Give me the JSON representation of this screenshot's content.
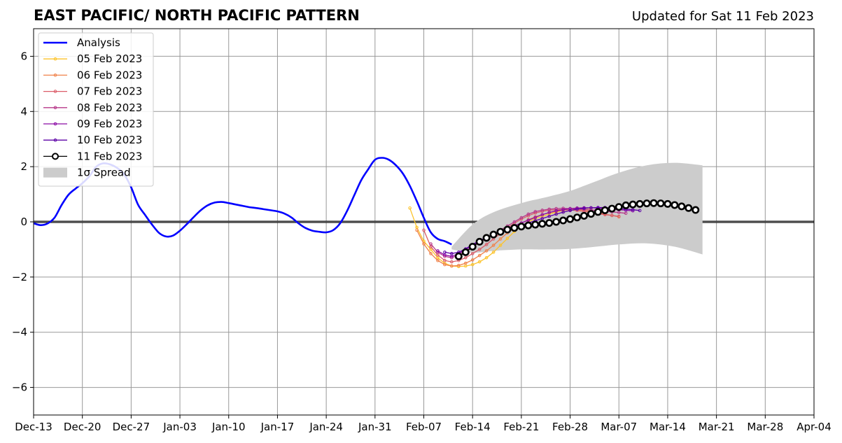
{
  "chart_data": {
    "type": "line",
    "title": "EAST PACIFIC/ NORTH PACIFIC PATTERN",
    "subtitle": "Updated for Sat 11 Feb 2023",
    "xlabel": "",
    "ylabel": "",
    "x_range": [
      "2022-12-13",
      "2023-04-04"
    ],
    "ylim": [
      -7,
      7
    ],
    "y_ticks": [
      -6,
      -4,
      -2,
      0,
      2,
      4,
      6
    ],
    "y_tick_labels": [
      "−6",
      "−4",
      "−2",
      "0",
      "2",
      "4",
      "6"
    ],
    "x_ticks": [
      "2022-12-13",
      "2022-12-20",
      "2022-12-27",
      "2023-01-03",
      "2023-01-10",
      "2023-01-17",
      "2023-01-24",
      "2023-01-31",
      "2023-02-07",
      "2023-02-14",
      "2023-02-21",
      "2023-02-28",
      "2023-03-07",
      "2023-03-14",
      "2023-03-21",
      "2023-03-28",
      "2023-04-04"
    ],
    "x_tick_labels": [
      "Dec-13",
      "Dec-20",
      "Dec-27",
      "Jan-03",
      "Jan-10",
      "Jan-17",
      "Jan-24",
      "Jan-31",
      "Feb-07",
      "Feb-14",
      "Feb-21",
      "Feb-28",
      "Mar-07",
      "Mar-14",
      "Mar-21",
      "Mar-28",
      "Apr-04"
    ],
    "grid": true,
    "zero_line": true,
    "legend_position": "top-left",
    "legend": [
      {
        "label": "Analysis",
        "color": "#0000ff",
        "kind": "line"
      },
      {
        "label": "05 Feb 2023",
        "color": "#fcc32a",
        "kind": "marker-line"
      },
      {
        "label": "06 Feb 2023",
        "color": "#f0824a",
        "kind": "marker-line"
      },
      {
        "label": "07 Feb 2023",
        "color": "#db5c68",
        "kind": "marker-line"
      },
      {
        "label": "08 Feb 2023",
        "color": "#b7388a",
        "kind": "marker-line"
      },
      {
        "label": "09 Feb 2023",
        "color": "#8b0aa5",
        "kind": "marker-line"
      },
      {
        "label": "10 Feb 2023",
        "color": "#5c01a6",
        "kind": "marker-line"
      },
      {
        "label": "11 Feb 2023",
        "color": "#000000",
        "kind": "circle-line"
      },
      {
        "label": "1σ Spread",
        "color": "#cccccc",
        "kind": "patch"
      }
    ],
    "analysis": {
      "name": "Analysis",
      "color": "#0000ff",
      "points": [
        [
          "2022-12-13",
          -0.05
        ],
        [
          "2022-12-14",
          -0.12
        ],
        [
          "2022-12-15",
          -0.06
        ],
        [
          "2022-12-16",
          0.15
        ],
        [
          "2022-12-17",
          0.6
        ],
        [
          "2022-12-18",
          0.98
        ],
        [
          "2022-12-19",
          1.2
        ],
        [
          "2022-12-20",
          1.4
        ],
        [
          "2022-12-21",
          1.65
        ],
        [
          "2022-12-22",
          2.0
        ],
        [
          "2022-12-23",
          2.12
        ],
        [
          "2022-12-24",
          2.08
        ],
        [
          "2022-12-25",
          1.95
        ],
        [
          "2022-12-26",
          1.72
        ],
        [
          "2022-12-27",
          1.25
        ],
        [
          "2022-12-28",
          0.62
        ],
        [
          "2022-12-29",
          0.25
        ],
        [
          "2022-12-30",
          -0.1
        ],
        [
          "2022-12-31",
          -0.4
        ],
        [
          "2023-01-01",
          -0.53
        ],
        [
          "2023-01-02",
          -0.5
        ],
        [
          "2023-01-03",
          -0.32
        ],
        [
          "2023-01-04",
          -0.08
        ],
        [
          "2023-01-05",
          0.18
        ],
        [
          "2023-01-06",
          0.42
        ],
        [
          "2023-01-07",
          0.6
        ],
        [
          "2023-01-08",
          0.7
        ],
        [
          "2023-01-09",
          0.72
        ],
        [
          "2023-01-10",
          0.68
        ],
        [
          "2023-01-11",
          0.63
        ],
        [
          "2023-01-12",
          0.58
        ],
        [
          "2023-01-13",
          0.53
        ],
        [
          "2023-01-14",
          0.5
        ],
        [
          "2023-01-15",
          0.46
        ],
        [
          "2023-01-16",
          0.42
        ],
        [
          "2023-01-17",
          0.38
        ],
        [
          "2023-01-18",
          0.3
        ],
        [
          "2023-01-19",
          0.16
        ],
        [
          "2023-01-20",
          -0.05
        ],
        [
          "2023-01-21",
          -0.22
        ],
        [
          "2023-01-22",
          -0.32
        ],
        [
          "2023-01-23",
          -0.36
        ],
        [
          "2023-01-24",
          -0.38
        ],
        [
          "2023-01-25",
          -0.3
        ],
        [
          "2023-01-26",
          -0.05
        ],
        [
          "2023-01-27",
          0.4
        ],
        [
          "2023-01-28",
          0.95
        ],
        [
          "2023-01-29",
          1.5
        ],
        [
          "2023-01-30",
          1.9
        ],
        [
          "2023-01-31",
          2.25
        ],
        [
          "2023-02-01",
          2.32
        ],
        [
          "2023-02-02",
          2.25
        ],
        [
          "2023-02-03",
          2.05
        ],
        [
          "2023-02-04",
          1.75
        ],
        [
          "2023-02-05",
          1.3
        ],
        [
          "2023-02-06",
          0.75
        ],
        [
          "2023-02-07",
          0.15
        ],
        [
          "2023-02-08",
          -0.38
        ],
        [
          "2023-02-09",
          -0.62
        ],
        [
          "2023-02-10",
          -0.7
        ],
        [
          "2023-02-11",
          -0.82
        ]
      ]
    },
    "series": [
      {
        "name": "05 Feb 2023",
        "color": "#fcc32a",
        "start": "2023-02-05",
        "values": [
          0.5,
          -0.2,
          -0.7,
          -1.0,
          -1.3,
          -1.5,
          -1.6,
          -1.62,
          -1.6,
          -1.55,
          -1.45,
          -1.3,
          -1.1,
          -0.85,
          -0.6,
          -0.35,
          -0.15,
          0.0,
          0.12,
          0.2,
          0.28,
          0.35,
          0.42,
          0.48,
          0.5,
          0.5,
          0.48
        ]
      },
      {
        "name": "06 Feb 2023",
        "color": "#f0824a",
        "start": "2023-02-06",
        "values": [
          -0.3,
          -0.8,
          -1.15,
          -1.4,
          -1.55,
          -1.6,
          -1.58,
          -1.5,
          -1.38,
          -1.22,
          -1.05,
          -0.85,
          -0.62,
          -0.4,
          -0.2,
          -0.05,
          0.08,
          0.18,
          0.26,
          0.33,
          0.38,
          0.42,
          0.44,
          0.45,
          0.42,
          0.38,
          0.33,
          0.28,
          0.23,
          0.18
        ]
      },
      {
        "name": "07 Feb 2023",
        "color": "#db5c68",
        "start": "2023-02-07",
        "values": [
          -0.3,
          -0.9,
          -1.2,
          -1.4,
          -1.45,
          -1.4,
          -1.3,
          -1.15,
          -1.0,
          -0.82,
          -0.62,
          -0.42,
          -0.22,
          -0.05,
          0.1,
          0.22,
          0.32,
          0.38,
          0.42,
          0.44,
          0.44,
          0.43,
          0.41,
          0.38,
          0.34,
          0.3,
          0.26,
          0.23,
          0.2
        ]
      },
      {
        "name": "08 Feb 2023",
        "color": "#b7388a",
        "start": "2023-02-08",
        "values": [
          -0.8,
          -1.1,
          -1.25,
          -1.3,
          -1.2,
          -1.05,
          -0.9,
          -0.75,
          -0.6,
          -0.45,
          -0.3,
          -0.15,
          0.0,
          0.15,
          0.28,
          0.37,
          0.42,
          0.46,
          0.48,
          0.49,
          0.48,
          0.47,
          0.45,
          0.43,
          0.41,
          0.38,
          0.36,
          0.34,
          0.31
        ]
      },
      {
        "name": "09 Feb 2023",
        "color": "#8b0aa5",
        "start": "2023-02-09",
        "values": [
          -1.05,
          -1.2,
          -1.25,
          -1.15,
          -1.0,
          -0.85,
          -0.7,
          -0.58,
          -0.46,
          -0.35,
          -0.24,
          -0.14,
          -0.04,
          0.06,
          0.16,
          0.26,
          0.34,
          0.4,
          0.44,
          0.48,
          0.5,
          0.51,
          0.51,
          0.5,
          0.48,
          0.46,
          0.44,
          0.42,
          0.4
        ]
      },
      {
        "name": "10 Feb 2023",
        "color": "#5c01a6",
        "start": "2023-02-10",
        "values": [
          -1.1,
          -1.15,
          -1.1,
          -0.98,
          -0.82,
          -0.68,
          -0.56,
          -0.46,
          -0.37,
          -0.28,
          -0.2,
          -0.12,
          -0.04,
          0.04,
          0.12,
          0.2,
          0.28,
          0.35,
          0.41,
          0.46,
          0.49,
          0.51,
          0.52,
          0.52,
          0.5,
          0.48,
          0.46,
          0.44,
          0.41
        ]
      },
      {
        "name": "11 Feb 2023",
        "color": "#000000",
        "start": "2023-02-12",
        "values": [
          -1.25,
          -1.1,
          -0.9,
          -0.72,
          -0.58,
          -0.46,
          -0.36,
          -0.28,
          -0.22,
          -0.17,
          -0.13,
          -0.1,
          -0.07,
          -0.04,
          0.0,
          0.05,
          0.1,
          0.16,
          0.22,
          0.29,
          0.36,
          0.42,
          0.48,
          0.54,
          0.6,
          0.63,
          0.65,
          0.67,
          0.68,
          0.67,
          0.65,
          0.61,
          0.56,
          0.5,
          0.43
        ]
      }
    ],
    "spread": {
      "name": "1σ Spread",
      "color": "#cccccc",
      "upper": [
        [
          "2023-02-11",
          -0.9
        ],
        [
          "2023-02-14",
          -0.1
        ],
        [
          "2023-02-17",
          0.35
        ],
        [
          "2023-02-21",
          0.68
        ],
        [
          "2023-02-25",
          0.92
        ],
        [
          "2023-02-28",
          1.12
        ],
        [
          "2023-03-03",
          1.4
        ],
        [
          "2023-03-07",
          1.78
        ],
        [
          "2023-03-11",
          2.05
        ],
        [
          "2023-03-15",
          2.14
        ],
        [
          "2023-03-19",
          2.05
        ]
      ],
      "lower": [
        [
          "2023-02-11",
          -1.0
        ],
        [
          "2023-02-14",
          -1.12
        ],
        [
          "2023-02-17",
          -1.05
        ],
        [
          "2023-02-21",
          -1.0
        ],
        [
          "2023-02-25",
          -1.0
        ],
        [
          "2023-02-28",
          -0.98
        ],
        [
          "2023-03-03",
          -0.92
        ],
        [
          "2023-03-07",
          -0.82
        ],
        [
          "2023-03-11",
          -0.78
        ],
        [
          "2023-03-15",
          -0.9
        ],
        [
          "2023-03-19",
          -1.18
        ]
      ]
    }
  }
}
